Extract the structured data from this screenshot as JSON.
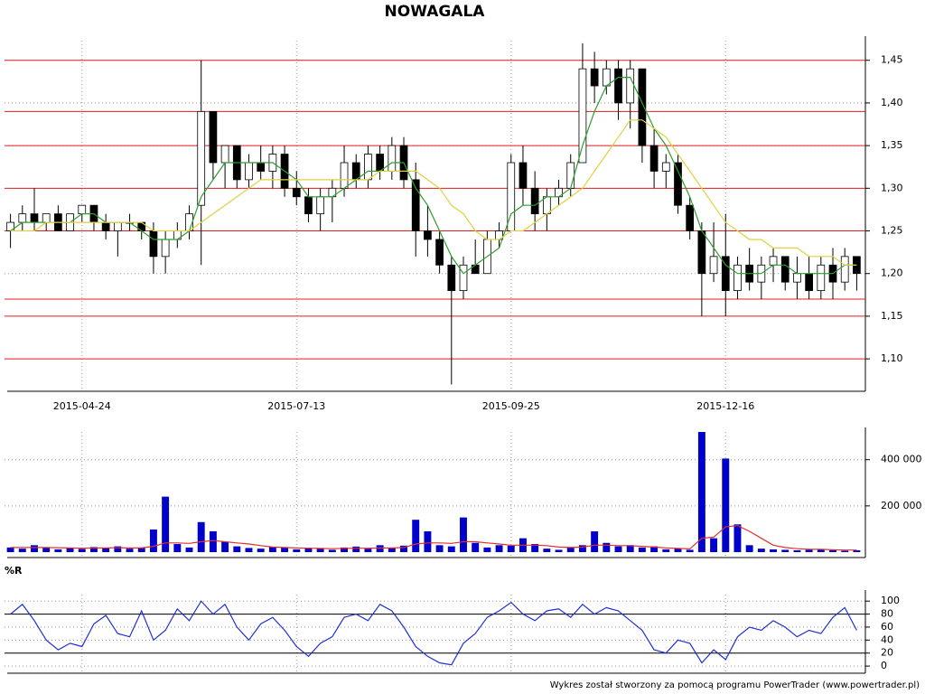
{
  "chart_data": [
    {
      "type": "candlestick",
      "title": "NOWAGALA",
      "categories": [
        null,
        null,
        null,
        null,
        null,
        null,
        "2015-04-24",
        null,
        null,
        null,
        null,
        null,
        null,
        null,
        null,
        null,
        null,
        null,
        null,
        null,
        null,
        null,
        null,
        null,
        "2015-07-13",
        null,
        null,
        null,
        null,
        null,
        null,
        null,
        null,
        null,
        null,
        null,
        null,
        null,
        null,
        null,
        null,
        null,
        "2015-09-25",
        null,
        null,
        null,
        null,
        null,
        null,
        null,
        null,
        null,
        null,
        null,
        null,
        null,
        null,
        null,
        null,
        null,
        "2015-12-16",
        null,
        null,
        null,
        null,
        null,
        null,
        null,
        null,
        null,
        null,
        null
      ],
      "open": [
        1.25,
        1.26,
        1.27,
        1.26,
        1.27,
        1.25,
        1.27,
        1.28,
        1.26,
        1.25,
        1.26,
        1.26,
        1.25,
        1.22,
        1.24,
        1.25,
        1.28,
        1.39,
        1.33,
        1.35,
        1.31,
        1.33,
        1.32,
        1.34,
        1.3,
        1.29,
        1.27,
        1.29,
        1.3,
        1.33,
        1.31,
        1.34,
        1.32,
        1.35,
        1.31,
        1.25,
        1.24,
        1.21,
        1.18,
        1.21,
        1.2,
        1.24,
        1.25,
        1.33,
        1.3,
        1.27,
        1.29,
        1.3,
        1.33,
        1.44,
        1.42,
        1.44,
        1.4,
        1.44,
        1.35,
        1.32,
        1.33,
        1.28,
        1.25,
        1.2,
        1.22,
        1.18,
        1.21,
        1.19,
        1.21,
        1.22,
        1.19,
        1.2,
        1.18,
        1.21,
        1.19,
        1.22
      ],
      "high": [
        1.27,
        1.28,
        1.3,
        1.27,
        1.28,
        1.27,
        1.28,
        1.28,
        1.27,
        1.26,
        1.27,
        1.26,
        1.26,
        1.25,
        1.26,
        1.28,
        1.45,
        1.39,
        1.35,
        1.35,
        1.34,
        1.35,
        1.35,
        1.35,
        1.32,
        1.3,
        1.3,
        1.31,
        1.35,
        1.34,
        1.35,
        1.35,
        1.36,
        1.36,
        1.33,
        1.28,
        1.25,
        1.22,
        1.22,
        1.24,
        1.25,
        1.26,
        1.34,
        1.35,
        1.32,
        1.3,
        1.31,
        1.34,
        1.47,
        1.46,
        1.45,
        1.45,
        1.45,
        1.44,
        1.37,
        1.34,
        1.34,
        1.29,
        1.26,
        1.26,
        1.27,
        1.22,
        1.23,
        1.22,
        1.23,
        1.22,
        1.22,
        1.22,
        1.22,
        1.23,
        1.23,
        1.22
      ],
      "low": [
        1.23,
        1.25,
        1.25,
        1.25,
        1.25,
        1.25,
        1.26,
        1.25,
        1.24,
        1.22,
        1.25,
        1.24,
        1.2,
        1.2,
        1.23,
        1.24,
        1.21,
        1.31,
        1.3,
        1.3,
        1.3,
        1.31,
        1.3,
        1.29,
        1.28,
        1.26,
        1.25,
        1.26,
        1.29,
        1.3,
        1.3,
        1.31,
        1.31,
        1.3,
        1.22,
        1.22,
        1.2,
        1.07,
        1.17,
        1.2,
        1.2,
        1.23,
        1.25,
        1.28,
        1.25,
        1.25,
        1.28,
        1.29,
        1.33,
        1.4,
        1.41,
        1.38,
        1.37,
        1.33,
        1.3,
        1.3,
        1.27,
        1.24,
        1.15,
        1.19,
        1.15,
        1.17,
        1.18,
        1.17,
        1.19,
        1.18,
        1.17,
        1.17,
        1.17,
        1.17,
        1.18,
        1.18
      ],
      "close": [
        1.26,
        1.27,
        1.26,
        1.27,
        1.25,
        1.27,
        1.28,
        1.26,
        1.25,
        1.26,
        1.26,
        1.25,
        1.22,
        1.24,
        1.25,
        1.27,
        1.39,
        1.33,
        1.35,
        1.31,
        1.33,
        1.32,
        1.34,
        1.3,
        1.29,
        1.27,
        1.29,
        1.3,
        1.33,
        1.31,
        1.34,
        1.32,
        1.35,
        1.31,
        1.25,
        1.24,
        1.21,
        1.18,
        1.21,
        1.2,
        1.24,
        1.25,
        1.33,
        1.3,
        1.27,
        1.29,
        1.3,
        1.33,
        1.44,
        1.42,
        1.44,
        1.4,
        1.44,
        1.35,
        1.32,
        1.33,
        1.28,
        1.25,
        1.2,
        1.22,
        1.18,
        1.21,
        1.19,
        1.21,
        1.22,
        1.19,
        1.2,
        1.18,
        1.21,
        1.19,
        1.22,
        1.2
      ],
      "series": [
        {
          "color": "#2e9e2e",
          "values": [
            1.25,
            1.26,
            1.26,
            1.26,
            1.26,
            1.26,
            1.27,
            1.27,
            1.26,
            1.26,
            1.26,
            1.25,
            1.24,
            1.24,
            1.24,
            1.25,
            1.29,
            1.31,
            1.33,
            1.33,
            1.33,
            1.33,
            1.33,
            1.32,
            1.31,
            1.29,
            1.29,
            1.29,
            1.3,
            1.31,
            1.32,
            1.32,
            1.33,
            1.33,
            1.3,
            1.28,
            1.25,
            1.22,
            1.2,
            1.21,
            1.22,
            1.23,
            1.27,
            1.28,
            1.28,
            1.29,
            1.29,
            1.3,
            1.35,
            1.39,
            1.42,
            1.43,
            1.43,
            1.4,
            1.37,
            1.35,
            1.32,
            1.29,
            1.25,
            1.23,
            1.21,
            1.2,
            1.2,
            1.2,
            1.21,
            1.21,
            1.2,
            1.2,
            1.2,
            1.2,
            1.21,
            1.21
          ]
        },
        {
          "color": "#e0d040",
          "values": [
            1.25,
            1.25,
            1.25,
            1.26,
            1.26,
            1.26,
            1.26,
            1.26,
            1.26,
            1.26,
            1.26,
            1.26,
            1.25,
            1.25,
            1.25,
            1.25,
            1.26,
            1.27,
            1.28,
            1.29,
            1.3,
            1.31,
            1.31,
            1.31,
            1.31,
            1.31,
            1.31,
            1.31,
            1.31,
            1.31,
            1.31,
            1.32,
            1.32,
            1.32,
            1.32,
            1.31,
            1.3,
            1.28,
            1.27,
            1.25,
            1.24,
            1.24,
            1.25,
            1.25,
            1.26,
            1.27,
            1.28,
            1.29,
            1.3,
            1.32,
            1.34,
            1.36,
            1.38,
            1.38,
            1.37,
            1.36,
            1.34,
            1.32,
            1.3,
            1.28,
            1.26,
            1.25,
            1.24,
            1.24,
            1.23,
            1.23,
            1.23,
            1.22,
            1.22,
            1.22,
            1.21,
            1.21
          ]
        }
      ],
      "hlines": [
        1.45,
        1.39,
        1.35,
        1.3,
        1.25,
        1.17,
        1.15,
        1.1
      ],
      "hline_color": "#e02020",
      "ylim": [
        1.062,
        1.473
      ],
      "yticks": [
        {
          "value": 1.1,
          "label": "1,10"
        },
        {
          "value": 1.15,
          "label": "1,15"
        },
        {
          "value": 1.2,
          "label": "1,20"
        },
        {
          "value": 1.25,
          "label": "1,25"
        },
        {
          "value": 1.3,
          "label": "1,30"
        },
        {
          "value": 1.35,
          "label": "1,35"
        },
        {
          "value": 1.4,
          "label": "1,40"
        },
        {
          "value": 1.45,
          "label": "1,45"
        }
      ],
      "grid": true
    },
    {
      "type": "volume",
      "series": [
        {
          "type": "bar",
          "color": "#0000cc",
          "values": [
            20000,
            15000,
            30000,
            18000,
            12000,
            16000,
            14000,
            22000,
            18000,
            25000,
            15000,
            20000,
            98000,
            240000,
            35000,
            20000,
            130000,
            90000,
            45000,
            25000,
            18000,
            15000,
            22000,
            20000,
            12000,
            18000,
            15000,
            10000,
            20000,
            24000,
            15000,
            30000,
            18000,
            28000,
            140000,
            90000,
            30000,
            25000,
            150000,
            40000,
            20000,
            30000,
            28000,
            60000,
            35000,
            15000,
            10000,
            22000,
            30000,
            90000,
            40000,
            25000,
            30000,
            20000,
            25000,
            12000,
            15000,
            10000,
            520000,
            60000,
            405000,
            120000,
            30000,
            15000,
            12000,
            10000,
            8000,
            10000,
            12000,
            8000,
            6000,
            8000
          ]
        },
        {
          "type": "line",
          "color": "#e03030",
          "values": [
            20000,
            20000,
            20000,
            20000,
            19000,
            18000,
            17000,
            18000,
            18000,
            19000,
            18000,
            18000,
            25000,
            40000,
            40000,
            38000,
            45000,
            50000,
            45000,
            40000,
            35000,
            28000,
            22000,
            20000,
            18000,
            17000,
            16000,
            15000,
            16000,
            17000,
            17000,
            18000,
            18000,
            20000,
            35000,
            40000,
            40000,
            38000,
            45000,
            45000,
            40000,
            35000,
            30000,
            30000,
            30000,
            28000,
            22000,
            20000,
            22000,
            30000,
            30000,
            28000,
            28000,
            25000,
            22000,
            18000,
            16000,
            14000,
            60000,
            65000,
            110000,
            115000,
            90000,
            60000,
            30000,
            20000,
            15000,
            12000,
            12000,
            10000,
            9000,
            9000
          ]
        }
      ],
      "ylim": [
        0,
        520000
      ],
      "yticks": [
        {
          "value": 200000,
          "label": "200 000"
        },
        {
          "value": 400000,
          "label": "400 000"
        }
      ],
      "grid": true
    },
    {
      "type": "line",
      "title": "%R",
      "color": "#2030d0",
      "values": [
        80,
        95,
        70,
        40,
        25,
        35,
        30,
        65,
        78,
        50,
        45,
        85,
        40,
        55,
        88,
        70,
        100,
        80,
        95,
        60,
        40,
        65,
        75,
        55,
        30,
        15,
        35,
        45,
        75,
        80,
        70,
        95,
        85,
        60,
        30,
        15,
        5,
        2,
        35,
        50,
        75,
        85,
        98,
        80,
        70,
        85,
        88,
        75,
        95,
        80,
        90,
        85,
        70,
        55,
        25,
        20,
        40,
        35,
        5,
        25,
        10,
        45,
        60,
        55,
        70,
        60,
        45,
        55,
        50,
        75,
        90,
        55
      ],
      "hlines": [
        20,
        80
      ],
      "ylim": [
        -11,
        110
      ],
      "yticks": [
        0,
        20,
        40,
        60,
        80,
        100
      ],
      "grid": true
    }
  ],
  "footer": "Wykres został stworzony za pomocą programu PowerTrader (www.powertrader.pl)"
}
